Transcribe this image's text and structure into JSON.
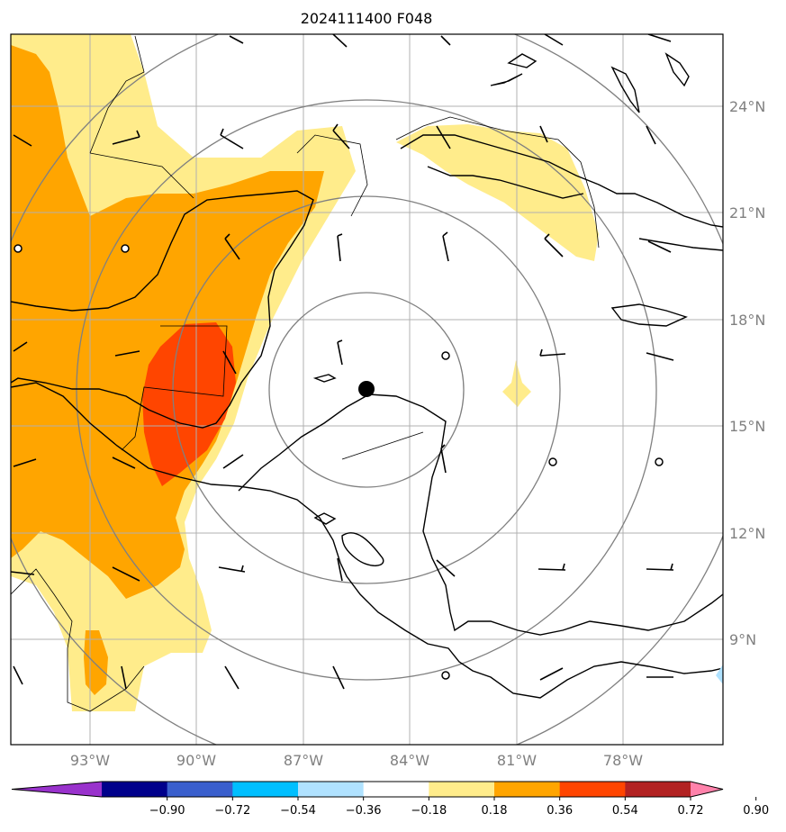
{
  "title": "2024111400 F048",
  "lon_labels": [
    "93°W",
    "90°W",
    "87°W",
    "84°W",
    "81°W",
    "78°W"
  ],
  "lat_labels": [
    "24°N",
    "21°N",
    "18°N",
    "15°N",
    "12°N",
    "9°N"
  ],
  "colorbar": {
    "tick_labels": [
      "−0.90",
      "−0.72",
      "−0.54",
      "−0.36",
      "−0.18",
      "0.18",
      "0.36",
      "0.54",
      "0.72",
      "0.90"
    ],
    "colors": [
      "#9932cc",
      "#00008b",
      "#3a5fcd",
      "#00bfff",
      "#b0e2ff",
      "#ffffff",
      "#ffec8b",
      "#ffa500",
      "#ff4500",
      "#b22222",
      "#ff82ab"
    ]
  },
  "field_colors": {
    "level_1": "#ffec8b",
    "level_2": "#ffa500",
    "level_3": "#ff4500"
  },
  "center_marker": {
    "lon": -85.2,
    "lat": 16.1
  },
  "range_rings": 4
}
